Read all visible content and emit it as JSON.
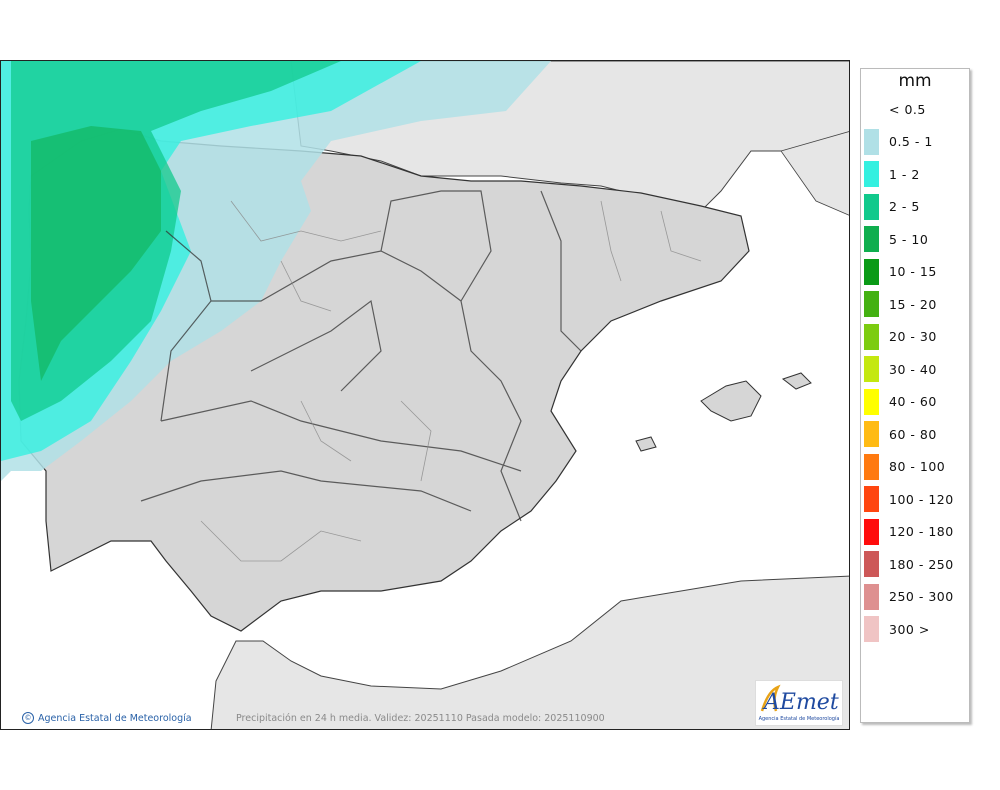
{
  "legend": {
    "unit": "mm",
    "items": [
      {
        "label": "< 0.5",
        "color": "#ffffff"
      },
      {
        "label": "0.5 - 1",
        "color": "#b0e0e6"
      },
      {
        "label": "1 - 2",
        "color": "#34f0e0"
      },
      {
        "label": "2 - 5",
        "color": "#11c98c"
      },
      {
        "label": "5 - 10",
        "color": "#0fae4e"
      },
      {
        "label": "10 - 15",
        "color": "#0a9a16"
      },
      {
        "label": "15 - 20",
        "color": "#44b112"
      },
      {
        "label": "20 - 30",
        "color": "#7ccc10"
      },
      {
        "label": "30 - 40",
        "color": "#c4e810"
      },
      {
        "label": "40 - 60",
        "color": "#ffff00"
      },
      {
        "label": "60 - 80",
        "color": "#ffbb14"
      },
      {
        "label": "80 - 100",
        "color": "#ff7a10"
      },
      {
        "label": "100 - 120",
        "color": "#ff4610"
      },
      {
        "label": "120 - 180",
        "color": "#ff0c0c"
      },
      {
        "label": "180 - 250",
        "color": "#cd5858"
      },
      {
        "label": "250 - 300",
        "color": "#de9090"
      },
      {
        "label": "300 >",
        "color": "#f0c4c4"
      }
    ]
  },
  "footer": {
    "credit": "Agencia Estatal de Meteorología",
    "caption": "Precipitación en 24 h media. Validez: 20251110 Pasada modelo: 2025110900"
  },
  "logo": {
    "name": "AEmet",
    "subtitle": "Agencia Estatal de Meteorología"
  }
}
